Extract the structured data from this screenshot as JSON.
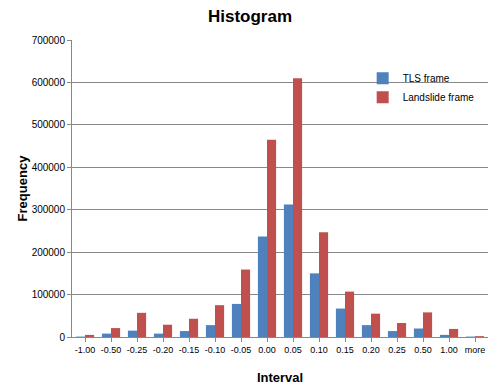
{
  "chart_data": {
    "type": "bar",
    "title": "Histogram",
    "x_label": "Interval",
    "y_label": "Frequency",
    "categories": [
      "-1.00",
      "-0.50",
      "-0.25",
      "-0.20",
      "-0.15",
      "-0.10",
      "-0.05",
      "0.00",
      "0.05",
      "0.10",
      "0.15",
      "0.20",
      "0.25",
      "0.50",
      "1.00",
      "more"
    ],
    "series": [
      {
        "name": "TLS frame",
        "color": "#4f81bd",
        "values": [
          1000,
          8000,
          15000,
          8000,
          14000,
          28000,
          78000,
          237000,
          312000,
          150000,
          67000,
          28000,
          14000,
          20000,
          5000,
          1000
        ]
      },
      {
        "name": "Landslide frame",
        "color": "#c0504d",
        "values": [
          5000,
          21000,
          57000,
          29000,
          43000,
          75000,
          159000,
          465000,
          610000,
          247000,
          107000,
          55000,
          33000,
          58000,
          19000,
          2000
        ]
      }
    ],
    "ylim": [
      0,
      700000
    ],
    "yticks": [
      0,
      100000,
      200000,
      300000,
      400000,
      500000,
      600000,
      700000
    ],
    "grid": true,
    "legend": "upper right"
  }
}
